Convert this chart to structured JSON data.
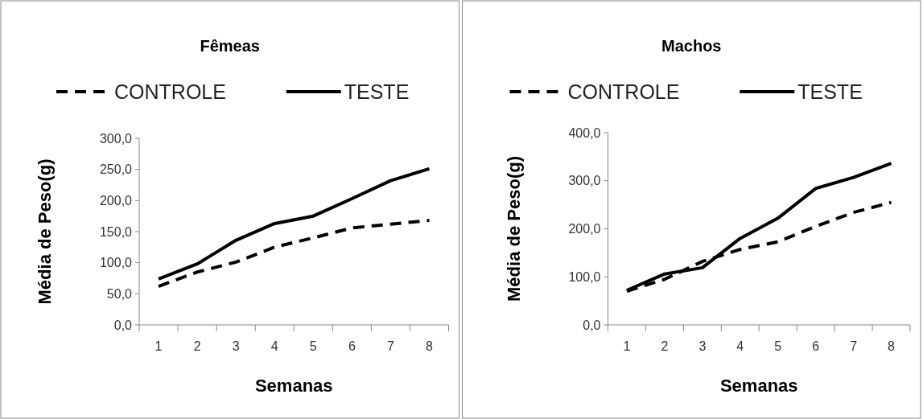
{
  "chart_data": [
    {
      "type": "line",
      "title": "Fêmeas",
      "xlabel": "Semanas",
      "ylabel": "Média de Peso(g)",
      "categories": [
        "1",
        "2",
        "3",
        "4",
        "5",
        "6",
        "7",
        "8"
      ],
      "series": [
        {
          "name": "CONTROLE",
          "color": "#000000",
          "line_style": "dashed",
          "values": [
            62,
            85,
            101,
            125,
            140,
            156,
            162,
            168
          ]
        },
        {
          "name": "TESTE",
          "color": "#000000",
          "line_style": "solid",
          "values": [
            74,
            98,
            136,
            163,
            175,
            203,
            232,
            251
          ]
        }
      ],
      "ylim": [
        0,
        300
      ],
      "yticks": [
        {
          "value": 0,
          "label": "0,0"
        },
        {
          "value": 50,
          "label": "50,0"
        },
        {
          "value": 100,
          "label": "100,0"
        },
        {
          "value": 150,
          "label": "150,0"
        },
        {
          "value": 200,
          "label": "200,0"
        },
        {
          "value": 250,
          "label": "250,0"
        },
        {
          "value": 300,
          "label": "300,0"
        }
      ],
      "legend": "top",
      "grid": false,
      "marker": "none"
    },
    {
      "type": "line",
      "title": "Machos",
      "xlabel": "Semanas",
      "ylabel": "Média de Peso(g)",
      "categories": [
        "1",
        "2",
        "3",
        "4",
        "5",
        "6",
        "7",
        "8"
      ],
      "series": [
        {
          "name": "CONTROLE",
          "color": "#000000",
          "line_style": "dashed",
          "values": [
            70,
            95,
            132,
            157,
            173,
            205,
            234,
            255
          ]
        },
        {
          "name": "TESTE",
          "color": "#000000",
          "line_style": "solid",
          "values": [
            72,
            106,
            119,
            180,
            222,
            284,
            307,
            336
          ]
        }
      ],
      "ylim": [
        0,
        400
      ],
      "yticks": [
        {
          "value": 0,
          "label": "0,0"
        },
        {
          "value": 100,
          "label": "100,0"
        },
        {
          "value": 200,
          "label": "200,0"
        },
        {
          "value": 300,
          "label": "300,0"
        },
        {
          "value": 400,
          "label": "400,0"
        }
      ],
      "legend": "top",
      "grid": false,
      "marker": "none"
    }
  ]
}
